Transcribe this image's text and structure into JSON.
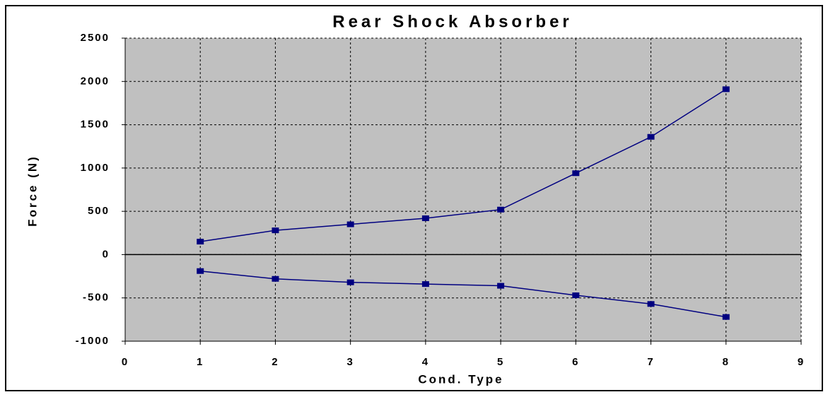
{
  "chart_data": {
    "type": "line",
    "title": "Rear Shock Absorber",
    "x_label": "Cond. Type",
    "y_label": "Force (N)",
    "x": [
      1,
      2,
      3,
      4,
      5,
      6,
      7,
      8
    ],
    "series": [
      {
        "color": "#000080",
        "values": [
          150,
          280,
          350,
          420,
          520,
          940,
          1360,
          1910
        ]
      },
      {
        "color": "#000080",
        "values": [
          -190,
          -280,
          -320,
          -340,
          -360,
          -470,
          -570,
          -720
        ]
      }
    ],
    "xlim": [
      0,
      9
    ],
    "xticks": [
      0,
      1,
      2,
      3,
      4,
      5,
      6,
      7,
      8,
      9
    ],
    "ylim": [
      -1000,
      2500
    ],
    "yticks": [
      -1000,
      -500,
      0,
      500,
      1000,
      1500,
      2000,
      2500
    ],
    "grid": true,
    "plot_background": "#c0c0c0"
  }
}
